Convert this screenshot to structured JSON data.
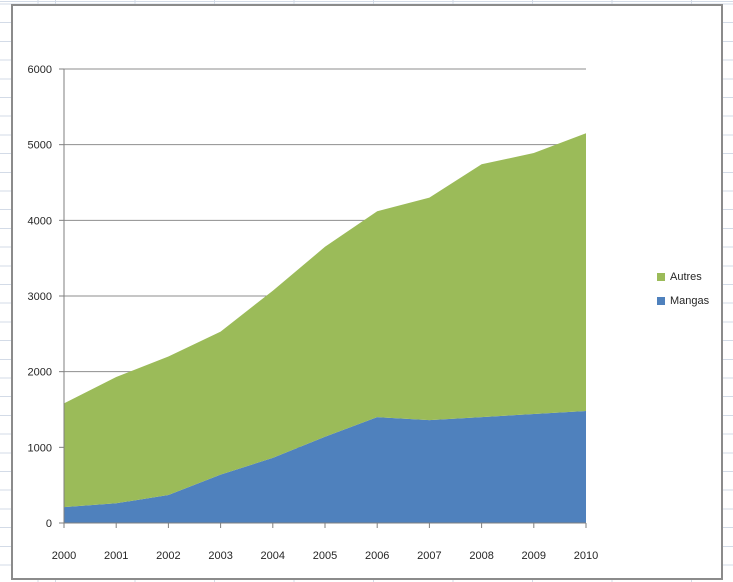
{
  "chart_data": {
    "type": "area",
    "stacked": true,
    "title": "",
    "xlabel": "",
    "ylabel": "",
    "categories": [
      "2000",
      "2001",
      "2002",
      "2003",
      "2004",
      "2005",
      "2006",
      "2007",
      "2008",
      "2009",
      "2010"
    ],
    "series": [
      {
        "name": "Mangas",
        "color": "#4F81BD",
        "values": [
          210,
          260,
          370,
          640,
          860,
          1140,
          1400,
          1360,
          1400,
          1440,
          1480
        ]
      },
      {
        "name": "Autres",
        "color": "#9BBB59",
        "values": [
          1370,
          1670,
          1830,
          1890,
          2210,
          2510,
          2720,
          2940,
          3340,
          3450,
          3670
        ]
      }
    ],
    "stacked_totals": [
      1580,
      1930,
      2200,
      2530,
      3070,
      3650,
      4120,
      4300,
      4740,
      4890,
      5150
    ],
    "ylim": [
      0,
      6000
    ],
    "ytick_interval": 1000,
    "ytick_labels": [
      "0",
      "1000",
      "2000",
      "3000",
      "4000",
      "5000",
      "6000"
    ],
    "grid": true,
    "legend_position": "right",
    "legend": {
      "entries": [
        {
          "label": "Autres",
          "color": "#9BBB59"
        },
        {
          "label": "Mangas",
          "color": "#4F81BD"
        }
      ]
    },
    "colors": {
      "gridline": "#8e8e8e",
      "axis": "#7f7f7f",
      "tick_text": "#262626",
      "chart_border": "#8b8b8b",
      "worksheet_gridline": "#d3dbe7"
    }
  }
}
